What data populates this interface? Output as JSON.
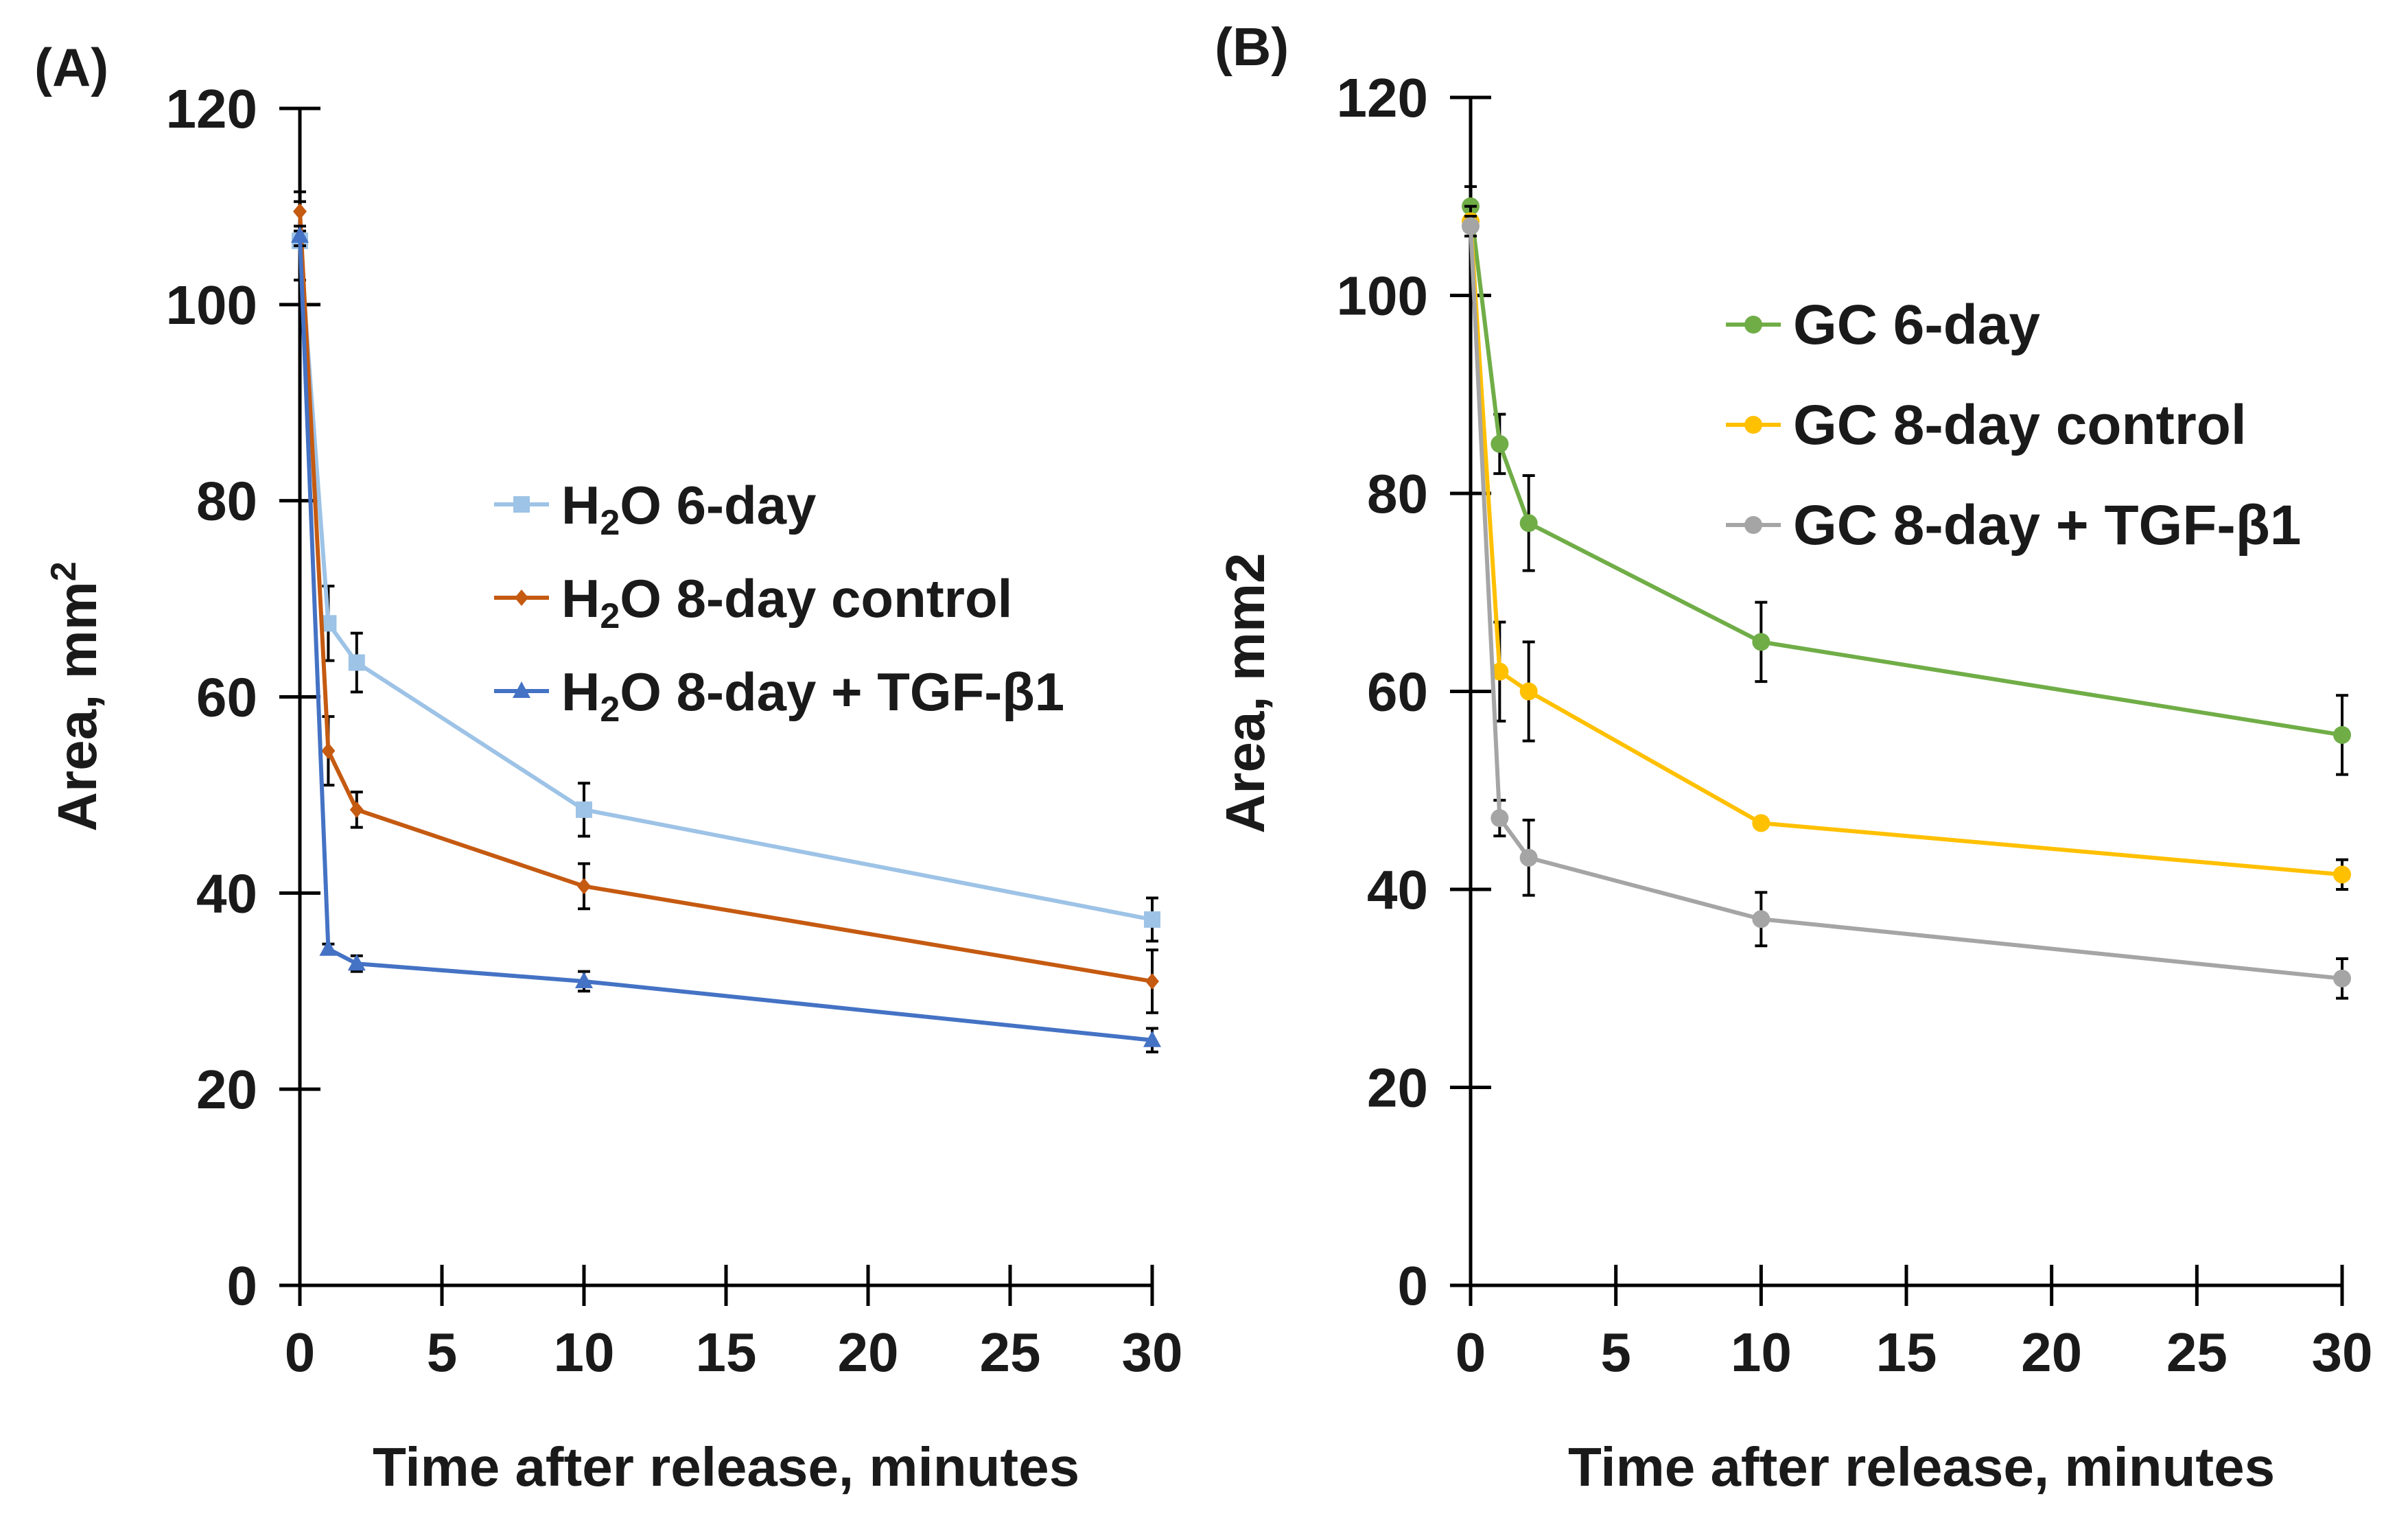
{
  "chart_data": [
    {
      "type": "line",
      "panel_label": "(A)",
      "xlabel": "Time after release, minutes",
      "ylabel": {
        "main": "Area, mm",
        "sup": "2"
      },
      "xlim": [
        0,
        30
      ],
      "ylim": [
        0,
        120
      ],
      "xticks": [
        0,
        5,
        10,
        15,
        20,
        25,
        30
      ],
      "yticks": [
        0,
        20,
        40,
        60,
        80,
        100,
        120
      ],
      "grid": false,
      "legend_position": "center-right",
      "x": [
        0,
        1,
        2,
        10,
        30
      ],
      "series": [
        {
          "name": "H2O 6-day",
          "legend": {
            "prefix": "H",
            "sub": "2",
            "suffix": "O 6-day"
          },
          "color": "#9DC3E6",
          "marker": "square",
          "values": [
            106.5,
            67.5,
            63.5,
            48.5,
            37.3
          ],
          "errors": [
            4.0,
            3.8,
            3.0,
            2.7,
            2.2
          ]
        },
        {
          "name": "H2O 8-day control",
          "legend": {
            "prefix": "H",
            "sub": "2",
            "suffix": "O 8-day control"
          },
          "color": "#C55A11",
          "marker": "diamond",
          "values": [
            109.5,
            54.5,
            48.5,
            40.7,
            31.0
          ],
          "errors": [
            2.0,
            3.5,
            1.8,
            2.3,
            3.2
          ]
        },
        {
          "name": "H2O 8-day + TGF-β1",
          "legend": {
            "prefix": "H",
            "sub": "2",
            "suffix": "O 8-day + TGF-β1"
          },
          "color": "#4472C4",
          "marker": "triangle",
          "values": [
            107.0,
            34.3,
            32.8,
            31.0,
            25.0
          ],
          "errors": [
            1.0,
            0.5,
            0.8,
            1.0,
            1.2
          ]
        }
      ]
    },
    {
      "type": "line",
      "panel_label": "(B)",
      "xlabel": "Time after release, minutes",
      "ylabel": {
        "main": "Area, mm2",
        "sup": ""
      },
      "xlim": [
        0,
        30
      ],
      "ylim": [
        0,
        120
      ],
      "xticks": [
        0,
        5,
        10,
        15,
        20,
        25,
        30
      ],
      "yticks": [
        0,
        20,
        40,
        60,
        80,
        100,
        120
      ],
      "grid": false,
      "legend_position": "upper-right",
      "x": [
        0,
        1,
        2,
        10,
        30
      ],
      "series": [
        {
          "name": "GC 6-day",
          "legend": {
            "prefix": "GC 6-day",
            "sub": "",
            "suffix": ""
          },
          "color": "#70AD47",
          "marker": "circle",
          "values": [
            109.0,
            85.0,
            77.0,
            65.0,
            55.6
          ],
          "errors": [
            2.0,
            3.0,
            4.8,
            4.0,
            4.0
          ]
        },
        {
          "name": "GC 8-day control",
          "legend": {
            "prefix": "GC 8-day control",
            "sub": "",
            "suffix": ""
          },
          "color": "#FFC000",
          "marker": "circle",
          "values": [
            107.5,
            62.0,
            60.0,
            46.7,
            41.5
          ],
          "errors": [
            1.5,
            5.0,
            5.0,
            0.5,
            1.5
          ]
        },
        {
          "name": "GC 8-day + TGF-β1",
          "legend": {
            "prefix": "GC 8-day + TGF-β1",
            "sub": "",
            "suffix": ""
          },
          "color": "#A5A5A5",
          "marker": "circle",
          "values": [
            107.0,
            47.2,
            43.2,
            37.0,
            31.0
          ],
          "errors": [
            1.0,
            1.8,
            3.8,
            2.7,
            2.0
          ]
        }
      ]
    }
  ]
}
